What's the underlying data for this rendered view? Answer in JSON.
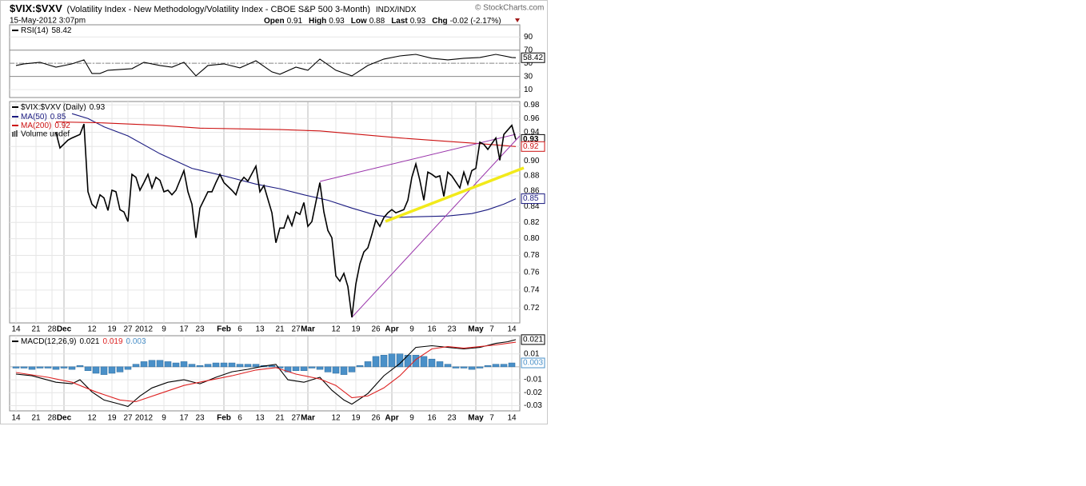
{
  "header": {
    "symbol": "$VIX:$VXV",
    "description": "(Volatility Index - New Methodology/Volatility Index - CBOE S&P 500 3-Month)",
    "exchange": "INDX/INDX",
    "source": "© StockCharts.com",
    "date": "15-May-2012 3:07pm",
    "quote": [
      {
        "label": "Open",
        "value": 0.91
      },
      {
        "label": "High",
        "value": 0.93
      },
      {
        "label": "Low",
        "value": 0.88
      },
      {
        "label": "Last",
        "value": 0.93
      },
      {
        "label": "Chg",
        "value": "-0.02 (-2.17%)"
      }
    ]
  },
  "chart_data": [
    {
      "type": "line",
      "xlim": [
        -1.6,
        126
      ],
      "ylim": [
        -2,
        108.5
      ],
      "yticks": [
        10,
        30,
        50,
        70,
        90
      ],
      "grid": true,
      "series": [
        {
          "name": "RSI(14)",
          "color": "#000000",
          "last": 58.42,
          "x": [
            0,
            2,
            6,
            10,
            14,
            17,
            19,
            21,
            23,
            26,
            29,
            32,
            36,
            39,
            42,
            45,
            48,
            52,
            56,
            60,
            64,
            66,
            70,
            73,
            76,
            80,
            84,
            88,
            92,
            96,
            100,
            104,
            108,
            112,
            116,
            120,
            124,
            125
          ],
          "values": [
            46.7,
            49.1,
            51.5,
            44.2,
            49.1,
            55.2,
            34.5,
            34.5,
            39.4,
            40.6,
            41.8,
            51.5,
            46.7,
            44.2,
            51.5,
            30.9,
            46.7,
            49.1,
            43,
            53.9,
            37,
            33.3,
            44.2,
            39.4,
            56.4,
            39.4,
            30.9,
            46.7,
            56.4,
            61.2,
            63.6,
            57.6,
            55.2,
            57.6,
            58.8,
            63.6,
            58.8,
            58.42
          ]
        }
      ]
    },
    {
      "type": "line",
      "log": true,
      "xlim": [
        -1.6,
        126
      ],
      "ylim": [
        0.704,
        0.985
      ],
      "grid": true,
      "volume_legend": "Volume undef",
      "yticks": [
        0.72,
        0.74,
        0.76,
        0.78,
        {
          "value": 0.8,
          "label": "0.80"
        },
        0.82,
        0.84,
        0.86,
        0.88,
        {
          "value": 0.9,
          "label": "0.90"
        },
        0.92,
        0.94,
        0.96,
        0.98
      ],
      "xticks": [
        {
          "value": 0,
          "label": "14"
        },
        {
          "value": 5,
          "label": "21"
        },
        {
          "value": 9,
          "label": "28"
        },
        {
          "value": 12,
          "label": "Dec"
        },
        {
          "value": 19,
          "label": "12"
        },
        {
          "value": 24,
          "label": "19"
        },
        {
          "value": 28,
          "label": "27"
        },
        {
          "value": 32,
          "label": "2012"
        },
        {
          "value": 37,
          "label": "9"
        },
        {
          "value": 42,
          "label": "17"
        },
        {
          "value": 46,
          "label": "23"
        },
        {
          "value": 52,
          "label": "Feb"
        },
        {
          "value": 56,
          "label": "6"
        },
        {
          "value": 61,
          "label": "13"
        },
        {
          "value": 66,
          "label": "21"
        },
        {
          "value": 70,
          "label": "27"
        },
        {
          "value": 73,
          "label": "Mar"
        },
        {
          "value": 80,
          "label": "12"
        },
        {
          "value": 85,
          "label": "19"
        },
        {
          "value": 90,
          "label": "26"
        },
        {
          "value": 94,
          "label": "Apr"
        },
        {
          "value": 99,
          "label": "9"
        },
        {
          "value": 104,
          "label": "16"
        },
        {
          "value": 109,
          "label": "23"
        },
        {
          "value": 115,
          "label": "May"
        },
        {
          "value": 119,
          "label": "7"
        },
        {
          "value": 124,
          "label": "14"
        }
      ],
      "series": [
        {
          "name": "$VIX:$VXV (Daily)",
          "color": "#000000",
          "last": 0.93,
          "x": [
            10,
            11,
            13,
            14,
            16,
            17,
            18,
            19,
            20,
            21,
            22,
            23,
            24,
            25,
            26,
            27,
            28,
            29,
            30,
            31,
            32,
            33,
            34,
            35,
            36,
            37,
            38,
            39,
            40,
            42,
            43,
            44,
            45,
            46,
            48,
            49,
            50,
            51,
            52,
            54,
            55,
            56,
            57,
            58,
            60,
            61,
            62,
            64,
            65,
            66,
            67,
            68,
            69,
            70,
            71,
            72,
            73,
            74,
            76,
            77,
            78,
            79,
            80,
            81,
            82,
            83,
            84,
            85,
            86,
            87,
            88,
            89,
            90,
            91,
            92,
            93,
            94,
            95,
            97,
            98,
            99,
            100,
            101,
            102,
            103,
            104,
            105,
            106,
            107,
            108,
            109,
            111,
            112,
            113,
            114,
            115,
            116,
            117,
            118,
            120,
            121,
            122,
            124,
            125
          ],
          "values": [
            0.94,
            0.918,
            0.929,
            0.932,
            0.937,
            0.952,
            0.859,
            0.843,
            0.838,
            0.855,
            0.851,
            0.835,
            0.861,
            0.859,
            0.836,
            0.833,
            0.821,
            0.882,
            0.878,
            0.861,
            0.871,
            0.882,
            0.864,
            0.878,
            0.874,
            0.859,
            0.861,
            0.855,
            0.861,
            0.887,
            0.859,
            0.843,
            0.801,
            0.838,
            0.859,
            0.859,
            0.871,
            0.882,
            0.871,
            0.861,
            0.855,
            0.871,
            0.878,
            0.873,
            0.893,
            0.859,
            0.867,
            0.832,
            0.795,
            0.813,
            0.813,
            0.828,
            0.816,
            0.833,
            0.83,
            0.845,
            0.815,
            0.821,
            0.871,
            0.833,
            0.81,
            0.801,
            0.756,
            0.75,
            0.759,
            0.744,
            0.71,
            0.747,
            0.77,
            0.784,
            0.789,
            0.805,
            0.823,
            0.815,
            0.826,
            0.832,
            0.836,
            0.832,
            0.836,
            0.848,
            0.878,
            0.896,
            0.874,
            0.848,
            0.885,
            0.882,
            0.878,
            0.88,
            0.853,
            0.885,
            0.88,
            0.864,
            0.885,
            0.869,
            0.887,
            0.89,
            0.926,
            0.923,
            0.916,
            0.932,
            0.901,
            0.937,
            0.95,
            0.93
          ]
        },
        {
          "name": "MA(50)",
          "color": "#1a1a80",
          "last": 0.85,
          "x": [
            14,
            18,
            22,
            28,
            36,
            44,
            52,
            60,
            66,
            72,
            78,
            84,
            90,
            94,
            100,
            108,
            114,
            118,
            122,
            125
          ],
          "values": [
            0.967,
            0.96,
            0.948,
            0.935,
            0.91,
            0.89,
            0.88,
            0.869,
            0.863,
            0.855,
            0.848,
            0.838,
            0.829,
            0.826,
            0.827,
            0.828,
            0.831,
            0.836,
            0.843,
            0.85
          ]
        },
        {
          "name": "MA(200)",
          "color": "#cc1111",
          "last": 0.92,
          "x": [
            10,
            20,
            36,
            46,
            56,
            66,
            76,
            86,
            96,
            106,
            116,
            125
          ],
          "values": [
            0.955,
            0.954,
            0.95,
            0.946,
            0.945,
            0.944,
            0.942,
            0.937,
            0.932,
            0.928,
            0.924,
            0.92
          ]
        }
      ]
    },
    {
      "type": "line",
      "xlim": [
        -1.6,
        126
      ],
      "ylim": [
        -0.034,
        0.024
      ],
      "grid": true,
      "yticks": [
        -0.03,
        -0.02,
        -0.01,
        0.01
      ],
      "xticks": [
        {
          "value": 0,
          "label": "14"
        },
        {
          "value": 5,
          "label": "21"
        },
        {
          "value": 9,
          "label": "28"
        },
        {
          "value": 12,
          "label": "Dec"
        },
        {
          "value": 19,
          "label": "12"
        },
        {
          "value": 24,
          "label": "19"
        },
        {
          "value": 28,
          "label": "27"
        },
        {
          "value": 32,
          "label": "2012"
        },
        {
          "value": 37,
          "label": "9"
        },
        {
          "value": 42,
          "label": "17"
        },
        {
          "value": 46,
          "label": "23"
        },
        {
          "value": 52,
          "label": "Feb"
        },
        {
          "value": 56,
          "label": "6"
        },
        {
          "value": 61,
          "label": "13"
        },
        {
          "value": 66,
          "label": "21"
        },
        {
          "value": 70,
          "label": "27"
        },
        {
          "value": 73,
          "label": "Mar"
        },
        {
          "value": 80,
          "label": "12"
        },
        {
          "value": 85,
          "label": "19"
        },
        {
          "value": 90,
          "label": "26"
        },
        {
          "value": 94,
          "label": "Apr"
        },
        {
          "value": 99,
          "label": "9"
        },
        {
          "value": 104,
          "label": "16"
        },
        {
          "value": 109,
          "label": "23"
        },
        {
          "value": 115,
          "label": "May"
        },
        {
          "value": 119,
          "label": "7"
        },
        {
          "value": 124,
          "label": "14"
        }
      ],
      "series": [
        {
          "kind": "bar",
          "color": "#4a90c8",
          "last": 0.003,
          "x": [
            0,
            2,
            4,
            6,
            8,
            10,
            12,
            14,
            16,
            18,
            20,
            22,
            24,
            26,
            28,
            30,
            32,
            34,
            36,
            38,
            40,
            42,
            44,
            46,
            48,
            50,
            52,
            54,
            56,
            58,
            60,
            62,
            64,
            66,
            68,
            70,
            72,
            74,
            76,
            78,
            80,
            82,
            84,
            86,
            88,
            90,
            92,
            94,
            96,
            98,
            100,
            102,
            104,
            106,
            108,
            110,
            112,
            114,
            116,
            118,
            120,
            122,
            124
          ],
          "values": [
            -0.001,
            -0.001,
            -0.002,
            -0.001,
            -0.001,
            -0.002,
            -0.001,
            -0.002,
            0.001,
            -0.003,
            -0.005,
            -0.006,
            -0.005,
            -0.004,
            -0.002,
            0.002,
            0.004,
            0.005,
            0.005,
            0.004,
            0.003,
            0.004,
            0.002,
            0.001,
            0.002,
            0.003,
            0.003,
            0.003,
            0.002,
            0.002,
            0.002,
            0.001,
            0.001,
            -0.001,
            -0.004,
            -0.003,
            -0.003,
            -0.001,
            -0.002,
            -0.004,
            -0.005,
            -0.006,
            -0.004,
            0.001,
            0.004,
            0.008,
            0.009,
            0.01,
            0.01,
            0.009,
            0.009,
            0.008,
            0.006,
            0.004,
            0.002,
            -0.001,
            -0.001,
            -0.002,
            -0.001,
            0.001,
            0.002,
            0.002,
            0.003
          ]
        },
        {
          "name": "MACD(12,26,9)",
          "color": "#000000",
          "last": 0.021,
          "x": [
            0,
            4,
            10,
            14,
            16,
            19,
            22,
            26,
            28,
            31,
            34,
            38,
            42,
            46,
            50,
            54,
            58,
            62,
            65,
            68,
            72,
            76,
            79,
            82,
            84,
            88,
            92,
            96,
            100,
            104,
            108,
            112,
            116,
            120,
            123,
            125
          ],
          "values": [
            -0.0056,
            -0.0069,
            -0.0119,
            -0.0131,
            -0.01,
            -0.0194,
            -0.0256,
            -0.0288,
            -0.0306,
            -0.0225,
            -0.0163,
            -0.0119,
            -0.01,
            -0.0131,
            -0.0081,
            -0.0038,
            -0.0019,
            0.0006,
            0.0019,
            -0.01,
            -0.0119,
            -0.0081,
            -0.0181,
            -0.0256,
            -0.0288,
            -0.0206,
            -0.0069,
            0.0025,
            0.015,
            0.0163,
            0.015,
            0.0138,
            0.015,
            0.0181,
            0.0194,
            0.021
          ]
        },
        {
          "color": "#dd2222",
          "last": 0.019,
          "x": [
            0,
            8,
            14,
            20,
            26,
            30,
            36,
            42,
            48,
            54,
            60,
            65,
            70,
            76,
            80,
            84,
            88,
            92,
            96,
            100,
            104,
            108,
            112,
            116,
            120,
            125
          ],
          "values": [
            -0.0044,
            -0.0081,
            -0.0119,
            -0.0194,
            -0.0256,
            -0.0269,
            -0.0206,
            -0.0144,
            -0.0106,
            -0.0069,
            -0.0025,
            -0.0006,
            -0.0056,
            -0.0094,
            -0.0144,
            -0.0238,
            -0.0225,
            -0.0163,
            -0.0069,
            0.0056,
            0.0138,
            0.0156,
            0.0144,
            0.0156,
            0.0169,
            0.019
          ]
        }
      ]
    }
  ]
}
